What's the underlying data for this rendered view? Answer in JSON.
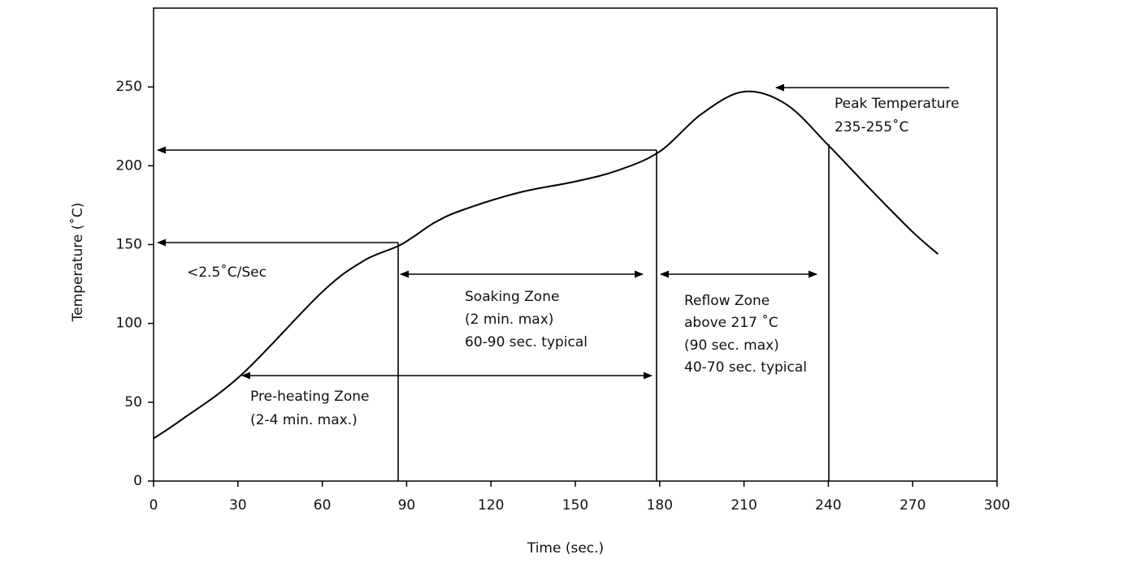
{
  "chart_data": {
    "type": "line",
    "x_label": "Time (sec.)",
    "y_label": "Temperature (˚C)",
    "x": [
      0,
      10,
      31,
      60,
      75,
      88,
      100,
      110,
      130,
      150,
      165,
      180,
      195,
      210,
      225,
      240,
      255,
      270,
      279
    ],
    "series": [
      {
        "color": "#000000",
        "values": [
          27,
          39,
          67,
          120,
          140,
          150,
          164,
          172,
          183,
          190,
          197,
          209,
          233,
          247,
          239,
          213,
          185,
          158,
          144
        ]
      }
    ],
    "xlim": [
      0,
      300
    ],
    "ylim": [
      0,
      300
    ],
    "xticks": [
      0,
      30,
      60,
      90,
      120,
      150,
      180,
      210,
      240,
      270,
      300
    ],
    "yticks": [
      0,
      50,
      100,
      150,
      200,
      250
    ],
    "annotations": [
      "<2.5˚C/Sec",
      "Soaking Zone",
      "(2 min. max)",
      "60-90 sec. typical",
      "Reflow Zone",
      "above 217 ˚C",
      "(90 sec. max)",
      "40-70 sec. typical",
      "Pre-heating Zone",
      "(2-4 min. max.)",
      "Peak Temperature",
      "235-255˚C"
    ]
  }
}
